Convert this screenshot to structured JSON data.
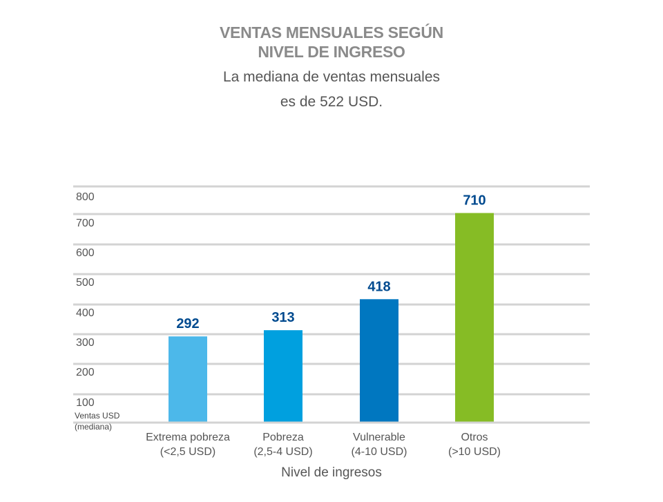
{
  "chart_data": {
    "type": "bar",
    "title": [
      "VENTAS MENSUALES SEGÚN",
      "NIVEL DE INGRESO"
    ],
    "subtitle": [
      "La mediana de ventas mensuales",
      "es de 522 USD."
    ],
    "categories": [
      [
        "Extrema pobreza",
        "(<2,5 USD)"
      ],
      [
        "Pobreza",
        "(2,5-4 USD)"
      ],
      [
        "Vulnerable",
        "(4-10 USD)"
      ],
      [
        "Otros",
        "(>10 USD)"
      ]
    ],
    "values": [
      292,
      313,
      418,
      710
    ],
    "value_labels": [
      "292",
      "313",
      "418",
      "710"
    ],
    "colors": [
      "#4cb8ea",
      "#00a0df",
      "#0077c0",
      "#86bc25"
    ],
    "value_label_color": "#004a8f",
    "xlabel": "Nivel de ingresos",
    "ylabel": [
      "Ventas USD",
      "(mediana)"
    ],
    "yticks": [
      "100",
      "200",
      "300",
      "400",
      "500",
      "600",
      "700",
      "800"
    ],
    "ylim": [
      0,
      800
    ],
    "grid": true
  }
}
